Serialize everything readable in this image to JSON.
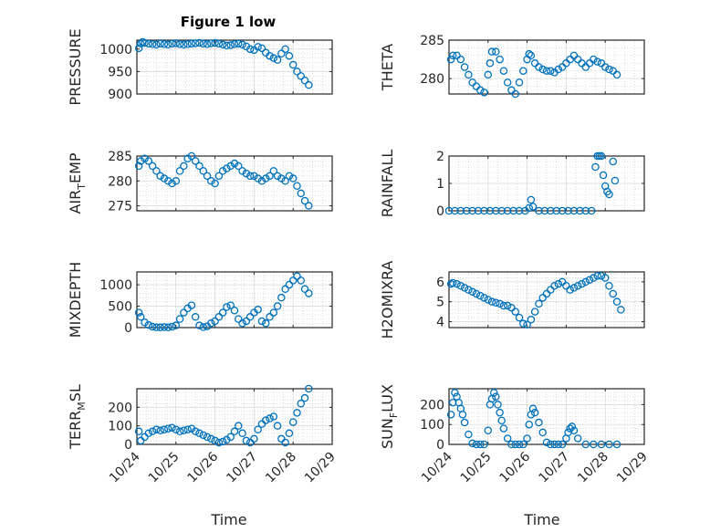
{
  "figure": {
    "title": "Figure 1 low",
    "marker_color": "#0072BD"
  },
  "x_axis": {
    "label": "Time",
    "ticks": [
      {
        "v": 0,
        "label": "10/24"
      },
      {
        "v": 1,
        "label": "10/25"
      },
      {
        "v": 2,
        "label": "10/26"
      },
      {
        "v": 3,
        "label": "10/27"
      },
      {
        "v": 4,
        "label": "10/28"
      },
      {
        "v": 5,
        "label": "10/29"
      }
    ]
  },
  "chart_data": [
    {
      "type": "scatter",
      "title": "Figure 1 low",
      "ylabel": "PRESSURE",
      "ylim": [
        900,
        1020
      ],
      "yticks": [
        900,
        950,
        1000
      ],
      "grid": true,
      "x": [
        0.05,
        0.1,
        0.15,
        0.2,
        0.3,
        0.4,
        0.5,
        0.6,
        0.7,
        0.8,
        0.9,
        1.0,
        1.1,
        1.2,
        1.3,
        1.4,
        1.5,
        1.6,
        1.7,
        1.8,
        1.9,
        2.0,
        2.1,
        2.2,
        2.3,
        2.4,
        2.5,
        2.6,
        2.7,
        2.8,
        2.9,
        3.0,
        3.1,
        3.2,
        3.3,
        3.4,
        3.5,
        3.6,
        3.7,
        3.8,
        3.9,
        4.0,
        4.1,
        4.2,
        4.3,
        4.4
      ],
      "y": [
        1002,
        1012,
        1016,
        1014,
        1012,
        1011,
        1010,
        1012,
        1011,
        1010,
        1012,
        1013,
        1011,
        1010,
        1011,
        1012,
        1013,
        1014,
        1012,
        1011,
        1013,
        1014,
        1012,
        1010,
        1008,
        1009,
        1011,
        1012,
        1010,
        1006,
        1000,
        998,
        1005,
        1002,
        992,
        985,
        980,
        976,
        990,
        1000,
        985,
        965,
        950,
        940,
        930,
        920
      ]
    },
    {
      "type": "scatter",
      "ylabel": "THETA",
      "ylim": [
        278,
        285
      ],
      "yticks": [
        280,
        285
      ],
      "grid": true,
      "x": [
        0.05,
        0.1,
        0.2,
        0.3,
        0.4,
        0.5,
        0.6,
        0.7,
        0.8,
        0.9,
        1.0,
        1.05,
        1.1,
        1.2,
        1.3,
        1.4,
        1.5,
        1.6,
        1.7,
        1.8,
        1.9,
        2.0,
        2.05,
        2.1,
        2.2,
        2.3,
        2.4,
        2.5,
        2.6,
        2.7,
        2.8,
        2.9,
        3.0,
        3.1,
        3.2,
        3.3,
        3.4,
        3.5,
        3.6,
        3.7,
        3.8,
        3.9,
        4.0,
        4.1,
        4.2,
        4.3
      ],
      "y": [
        282.5,
        283.0,
        283.0,
        282.5,
        281.5,
        280.5,
        279.5,
        279.0,
        278.5,
        278.2,
        280.5,
        282.0,
        283.5,
        283.5,
        282.5,
        281.0,
        279.5,
        278.5,
        278.0,
        279.5,
        281.0,
        282.5,
        283.2,
        283.0,
        282.0,
        281.5,
        281.2,
        281.0,
        281.0,
        280.8,
        281.2,
        281.5,
        282.0,
        282.5,
        283.0,
        282.5,
        282.0,
        281.5,
        282.0,
        282.5,
        282.2,
        282.0,
        281.5,
        281.2,
        281.0,
        280.5
      ]
    },
    {
      "type": "scatter",
      "ylabel": "AIR_TEMP",
      "ylim": [
        274,
        285
      ],
      "yticks": [
        275,
        280,
        285
      ],
      "grid": true,
      "x": [
        0.05,
        0.1,
        0.2,
        0.3,
        0.4,
        0.5,
        0.6,
        0.7,
        0.8,
        0.9,
        1.0,
        1.1,
        1.2,
        1.3,
        1.4,
        1.5,
        1.6,
        1.7,
        1.8,
        1.9,
        2.0,
        2.1,
        2.2,
        2.3,
        2.4,
        2.5,
        2.6,
        2.7,
        2.8,
        2.9,
        3.0,
        3.1,
        3.2,
        3.3,
        3.4,
        3.5,
        3.6,
        3.7,
        3.8,
        3.9,
        4.0,
        4.1,
        4.2,
        4.3,
        4.4
      ],
      "y": [
        283,
        284,
        284.5,
        284,
        283,
        282,
        281,
        280.5,
        280,
        279.5,
        280,
        282,
        283,
        284.5,
        285,
        284,
        283,
        282,
        281,
        280,
        279.5,
        281,
        282,
        282.5,
        283,
        283.5,
        283,
        282,
        281.5,
        281,
        281,
        280.5,
        280,
        280.5,
        281,
        282,
        281,
        280.5,
        280,
        281,
        280.5,
        279,
        277.5,
        276,
        275
      ]
    },
    {
      "type": "scatter",
      "ylabel": "RAINFALL",
      "ylim": [
        0,
        2
      ],
      "yticks": [
        0,
        1,
        2
      ],
      "grid": true,
      "x": [
        0.0,
        0.15,
        0.3,
        0.45,
        0.6,
        0.75,
        0.9,
        1.05,
        1.2,
        1.35,
        1.5,
        1.65,
        1.8,
        1.95,
        2.05,
        2.1,
        2.15,
        2.3,
        2.45,
        2.6,
        2.75,
        2.9,
        3.05,
        3.2,
        3.35,
        3.5,
        3.65,
        3.75,
        3.8,
        3.85,
        3.9,
        3.95,
        4.0,
        4.05,
        4.1,
        4.2,
        4.25
      ],
      "y": [
        0,
        0,
        0,
        0,
        0,
        0,
        0,
        0,
        0,
        0,
        0,
        0,
        0,
        0,
        0.1,
        0.4,
        0.15,
        0,
        0,
        0,
        0,
        0,
        0,
        0,
        0,
        0,
        0,
        1.6,
        2.0,
        2.0,
        2.0,
        1.3,
        0.9,
        0.7,
        0.6,
        1.8,
        1.1
      ]
    },
    {
      "type": "scatter",
      "ylabel": "MIXDEPTH",
      "ylim": [
        0,
        1300
      ],
      "yticks": [
        0,
        500,
        1000
      ],
      "grid": true,
      "x": [
        0.05,
        0.1,
        0.2,
        0.3,
        0.4,
        0.5,
        0.6,
        0.7,
        0.8,
        0.9,
        1.0,
        1.1,
        1.2,
        1.3,
        1.4,
        1.5,
        1.6,
        1.7,
        1.8,
        1.9,
        2.0,
        2.1,
        2.2,
        2.3,
        2.4,
        2.5,
        2.6,
        2.7,
        2.8,
        2.9,
        3.0,
        3.1,
        3.2,
        3.3,
        3.4,
        3.5,
        3.6,
        3.7,
        3.8,
        3.9,
        4.0,
        4.1,
        4.2,
        4.3,
        4.4
      ],
      "y": [
        350,
        250,
        120,
        60,
        20,
        5,
        5,
        10,
        5,
        20,
        50,
        200,
        350,
        450,
        520,
        250,
        50,
        10,
        30,
        100,
        150,
        250,
        350,
        480,
        520,
        400,
        200,
        100,
        150,
        250,
        350,
        420,
        150,
        100,
        250,
        350,
        500,
        700,
        900,
        1000,
        1100,
        1200,
        1100,
        900,
        800
      ]
    },
    {
      "type": "scatter",
      "ylabel": "H2OMIXRA",
      "ylim": [
        3.7,
        6.5
      ],
      "yticks": [
        4,
        5,
        6
      ],
      "grid": true,
      "x": [
        0.05,
        0.1,
        0.2,
        0.3,
        0.4,
        0.5,
        0.6,
        0.7,
        0.8,
        0.9,
        1.0,
        1.1,
        1.2,
        1.3,
        1.4,
        1.5,
        1.6,
        1.7,
        1.8,
        1.9,
        2.0,
        2.1,
        2.2,
        2.3,
        2.4,
        2.5,
        2.6,
        2.7,
        2.8,
        2.9,
        3.0,
        3.1,
        3.2,
        3.3,
        3.4,
        3.5,
        3.6,
        3.7,
        3.8,
        3.9,
        4.0,
        4.1,
        4.2,
        4.3,
        4.4
      ],
      "y": [
        5.9,
        5.95,
        5.9,
        5.8,
        5.7,
        5.6,
        5.5,
        5.4,
        5.3,
        5.2,
        5.1,
        5.0,
        4.95,
        4.9,
        4.8,
        4.8,
        4.7,
        4.5,
        4.2,
        3.9,
        3.85,
        4.1,
        4.5,
        4.9,
        5.2,
        5.4,
        5.6,
        5.8,
        5.9,
        6.0,
        5.8,
        5.6,
        5.7,
        5.8,
        5.9,
        6.0,
        6.1,
        6.2,
        6.3,
        6.3,
        6.2,
        5.8,
        5.4,
        5.0,
        4.6
      ]
    },
    {
      "type": "scatter",
      "ylabel": "TERR_MSL",
      "ylim": [
        0,
        300
      ],
      "yticks": [
        0,
        100,
        200
      ],
      "grid": true,
      "x": [
        0.05,
        0.1,
        0.2,
        0.3,
        0.4,
        0.5,
        0.6,
        0.7,
        0.8,
        0.9,
        1.0,
        1.1,
        1.2,
        1.3,
        1.4,
        1.5,
        1.6,
        1.7,
        1.8,
        1.9,
        2.0,
        2.1,
        2.2,
        2.3,
        2.4,
        2.5,
        2.6,
        2.7,
        2.8,
        2.9,
        3.0,
        3.1,
        3.2,
        3.3,
        3.4,
        3.5,
        3.6,
        3.7,
        3.8,
        3.9,
        4.0,
        4.1,
        4.2,
        4.3,
        4.4
      ],
      "y": [
        70,
        20,
        40,
        60,
        70,
        80,
        75,
        80,
        85,
        90,
        80,
        70,
        75,
        80,
        85,
        70,
        60,
        50,
        40,
        30,
        20,
        10,
        15,
        25,
        40,
        70,
        100,
        60,
        20,
        10,
        30,
        80,
        110,
        130,
        140,
        150,
        100,
        30,
        10,
        60,
        120,
        170,
        220,
        250,
        300
      ]
    },
    {
      "type": "scatter",
      "ylabel": "SUN_FLUX",
      "ylim": [
        0,
        280
      ],
      "yticks": [
        0,
        100,
        200
      ],
      "grid": true,
      "x": [
        0.05,
        0.1,
        0.15,
        0.2,
        0.25,
        0.3,
        0.35,
        0.4,
        0.5,
        0.6,
        0.7,
        0.8,
        0.9,
        1.0,
        1.05,
        1.1,
        1.15,
        1.2,
        1.25,
        1.3,
        1.35,
        1.4,
        1.5,
        1.6,
        1.7,
        1.8,
        1.9,
        2.0,
        2.05,
        2.1,
        2.15,
        2.2,
        2.3,
        2.4,
        2.5,
        2.6,
        2.7,
        2.8,
        2.9,
        3.0,
        3.05,
        3.1,
        3.15,
        3.2,
        3.3,
        3.5,
        3.7,
        3.9,
        4.1,
        4.3
      ],
      "y": [
        150,
        210,
        260,
        240,
        210,
        180,
        150,
        110,
        50,
        5,
        0,
        0,
        0,
        70,
        200,
        230,
        260,
        240,
        200,
        160,
        120,
        80,
        30,
        0,
        0,
        0,
        0,
        30,
        100,
        150,
        180,
        160,
        110,
        60,
        10,
        0,
        0,
        0,
        0,
        30,
        60,
        80,
        90,
        70,
        30,
        0,
        0,
        0,
        0,
        0
      ]
    }
  ]
}
